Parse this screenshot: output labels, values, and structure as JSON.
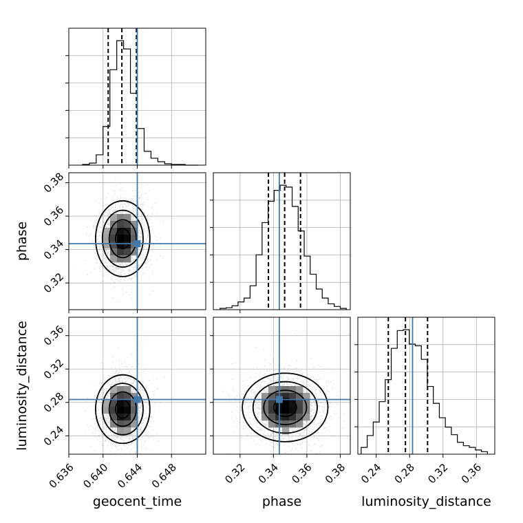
{
  "chart_data": {
    "type": "corner",
    "parameters": [
      "geocent_time",
      "phase",
      "luminosity_distance"
    ],
    "injection": {
      "geocent_time": 0.644,
      "phase": 0.3435,
      "luminosity_distance": 0.2835
    },
    "colors": {
      "injection": "#4477aa",
      "contour": "#000000",
      "grid": "#b0b0b0",
      "frame": "#000000"
    },
    "grid": true,
    "axes": {
      "geocent_time": {
        "label": "geocent_time",
        "lim": [
          0.636,
          0.652
        ],
        "ticks": [
          0.636,
          0.64,
          0.644,
          0.648
        ],
        "tick_labels": [
          "0.636",
          "0.640",
          "0.644",
          "0.648"
        ]
      },
      "phase": {
        "label": "phase",
        "lim": [
          0.304,
          0.386
        ],
        "ticks": [
          0.32,
          0.34,
          0.36,
          0.38
        ],
        "tick_labels": [
          "0.32",
          "0.34",
          "0.36",
          "0.38"
        ]
      },
      "luminosity_distance": {
        "label": "luminosity_distance",
        "lim": [
          0.218,
          0.382
        ],
        "ticks": [
          0.24,
          0.28,
          0.32,
          0.36
        ],
        "tick_labels": [
          "0.24",
          "0.28",
          "0.32",
          "0.36"
        ]
      }
    },
    "histograms": [
      {
        "parameter": "geocent_time",
        "quantiles": [
          0.6406,
          0.6422,
          0.6439
        ],
        "bin_edges": [
          0.6376,
          0.6384,
          0.6392,
          0.64,
          0.6408,
          0.6416,
          0.6424,
          0.6432,
          0.644,
          0.6448,
          0.6456,
          0.6464,
          0.6472,
          0.648,
          0.6488,
          0.6496,
          0.6504,
          0.6512
        ],
        "counts": [
          1,
          3,
          15,
          56,
          138,
          180,
          168,
          104,
          53,
          20,
          10,
          5,
          2,
          1,
          1,
          0,
          0
        ]
      },
      {
        "parameter": "phase",
        "quantiles": [
          0.337,
          0.3467,
          0.3562
        ],
        "bin_edges": [
          0.308,
          0.3116,
          0.3152,
          0.3188,
          0.3224,
          0.326,
          0.3296,
          0.3332,
          0.3368,
          0.3404,
          0.344,
          0.3476,
          0.3512,
          0.3548,
          0.3584,
          0.362,
          0.3656,
          0.3692,
          0.3728,
          0.3764,
          0.38,
          0.3836
        ],
        "counts": [
          2,
          3,
          6,
          12,
          18,
          37,
          85,
          135,
          168,
          185,
          193,
          190,
          160,
          122,
          83,
          55,
          32,
          18,
          9,
          5,
          2
        ]
      },
      {
        "parameter": "luminosity_distance",
        "quantiles": [
          0.2545,
          0.275,
          0.3015
        ],
        "bin_edges": [
          0.222,
          0.2292,
          0.2364,
          0.2436,
          0.2508,
          0.258,
          0.2652,
          0.2724,
          0.2796,
          0.2868,
          0.294,
          0.3012,
          0.3084,
          0.3156,
          0.3228,
          0.33,
          0.3372,
          0.3444,
          0.3516,
          0.3588,
          0.366,
          0.3732
        ],
        "counts": [
          8,
          22,
          38,
          62,
          88,
          125,
          146,
          147,
          130,
          128,
          112,
          80,
          60,
          43,
          32,
          23,
          14,
          10,
          8,
          5,
          3
        ]
      }
    ],
    "joint": [
      {
        "x": "geocent_time",
        "y": "phase",
        "mean": [
          0.6423,
          0.3465
        ],
        "sd": [
          0.0013,
          0.0105
        ]
      },
      {
        "x": "geocent_time",
        "y": "luminosity_distance",
        "mean": [
          0.6423,
          0.272
        ],
        "sd": [
          0.0013,
          0.019
        ]
      },
      {
        "x": "phase",
        "y": "luminosity_distance",
        "mean": [
          0.347,
          0.274
        ],
        "sd": [
          0.0105,
          0.019
        ]
      }
    ]
  }
}
